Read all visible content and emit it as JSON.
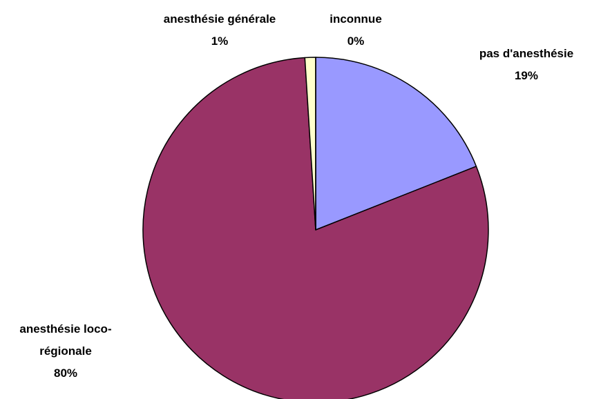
{
  "chart_data": {
    "type": "pie",
    "categories": [
      "pas d'anesthésie",
      "anesthésie loco-régionale",
      "anesthésie générale",
      "inconnue"
    ],
    "values": [
      19,
      80,
      1,
      0
    ],
    "value_labels": [
      "19%",
      "80%",
      "1%",
      "0%"
    ],
    "colors": [
      "#9999ff",
      "#993366",
      "#ffffcc",
      "#ccffff"
    ]
  }
}
